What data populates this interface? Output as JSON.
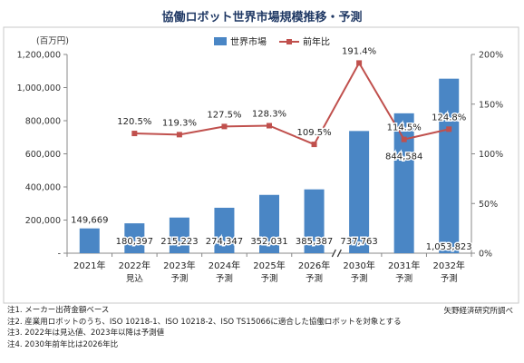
{
  "title": "協働ロボット世界市場規模推移・予測",
  "chart_data": {
    "type": "bar",
    "categories": [
      {
        "year": "2021年",
        "sub": ""
      },
      {
        "year": "2022年",
        "sub": "見込"
      },
      {
        "year": "2023年",
        "sub": "予測"
      },
      {
        "year": "2024年",
        "sub": "予測"
      },
      {
        "year": "2025年",
        "sub": "予測"
      },
      {
        "year": "2026年",
        "sub": "予測"
      },
      {
        "year": "2030年",
        "sub": "予測"
      },
      {
        "year": "2031年",
        "sub": "予測"
      },
      {
        "year": "2032年",
        "sub": "予測"
      }
    ],
    "series": [
      {
        "name": "世界市場",
        "axis": "left",
        "color": "#4a86c5",
        "values": [
          149669,
          180397,
          215223,
          274347,
          352031,
          385387,
          737763,
          844584,
          1053823
        ],
        "labels": [
          "149,669",
          "180,397",
          "215,223",
          "274,347",
          "352,031",
          "385,387",
          "737,763",
          "844,584",
          "1,053,823"
        ]
      },
      {
        "name": "前年比",
        "axis": "right",
        "color": "#c0504d",
        "values": [
          null,
          120.5,
          119.3,
          127.5,
          128.3,
          109.5,
          191.4,
          114.5,
          124.8
        ],
        "labels": [
          "",
          "120.5%",
          "119.3%",
          "127.5%",
          "128.3%",
          "109.5%",
          "191.4%",
          "114.5%",
          "124.8%"
        ]
      }
    ],
    "ylabel": "(百万円)",
    "ylim": [
      0,
      1200000
    ],
    "yticks": [
      0,
      200000,
      400000,
      600000,
      800000,
      1000000,
      1200000
    ],
    "ytick_labels": [
      "-",
      "200,000",
      "400,000",
      "600,000",
      "800,000",
      "1,000,000",
      "1,200,000"
    ],
    "y2lim": [
      0,
      200
    ],
    "y2ticks": [
      0,
      50,
      100,
      150,
      200
    ],
    "y2tick_labels": [
      "0%",
      "50%",
      "100%",
      "150%",
      "200%"
    ],
    "axis_break_after_index": 5,
    "legend_position": "top-center",
    "grid": false
  },
  "notes": [
    "注1. メーカー出荷金額ベース",
    "注2. 産業用ロボットのうち、ISO 10218-1、ISO 10218-2、ISO TS15066に適合した協働ロボットを対象とする",
    "注3. 2022年は見込値、2023年以降は予測値",
    "注4. 2030年前年比は2026年比"
  ],
  "source": "矢野経済研究所調べ"
}
